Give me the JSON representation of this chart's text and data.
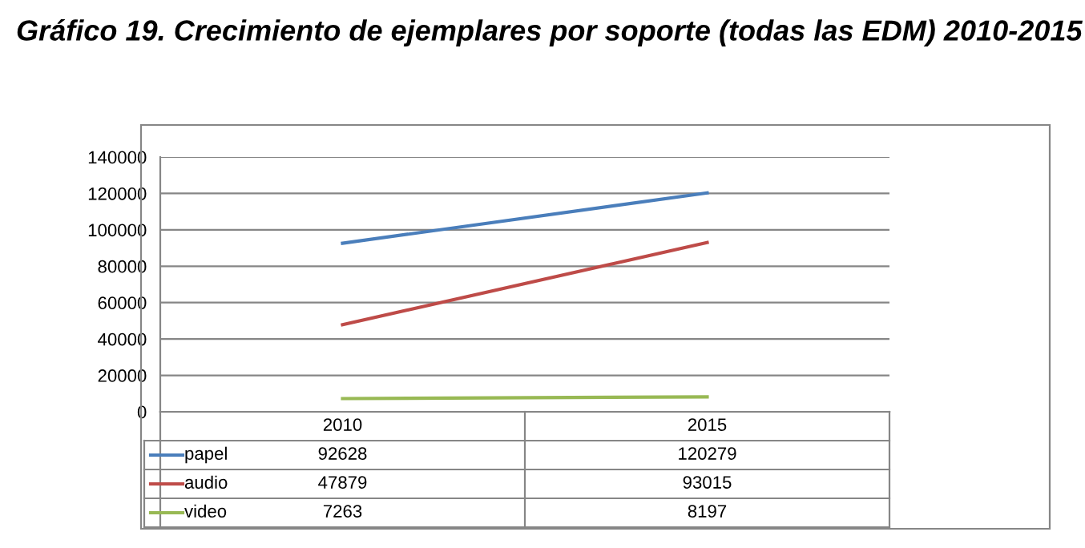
{
  "chart_data": {
    "type": "line",
    "title": "Gráfico 19. Crecimiento de ejemplares por soporte (todas las EDM) 2010-2015",
    "categories": [
      "2010",
      "2015"
    ],
    "series": [
      {
        "name": "papel",
        "color": "#4a7ebb",
        "values": [
          92628,
          120279
        ]
      },
      {
        "name": "audio",
        "color": "#be4b48",
        "values": [
          47879,
          93015
        ]
      },
      {
        "name": "video",
        "color": "#98b954",
        "values": [
          7263,
          8197
        ]
      }
    ],
    "ylim": [
      0,
      140000
    ],
    "yticks": [
      0,
      20000,
      40000,
      60000,
      80000,
      100000,
      120000,
      140000
    ],
    "grid": "y",
    "data_labels": true,
    "legend": "bottom",
    "marker": "none",
    "line_style": "solid"
  }
}
